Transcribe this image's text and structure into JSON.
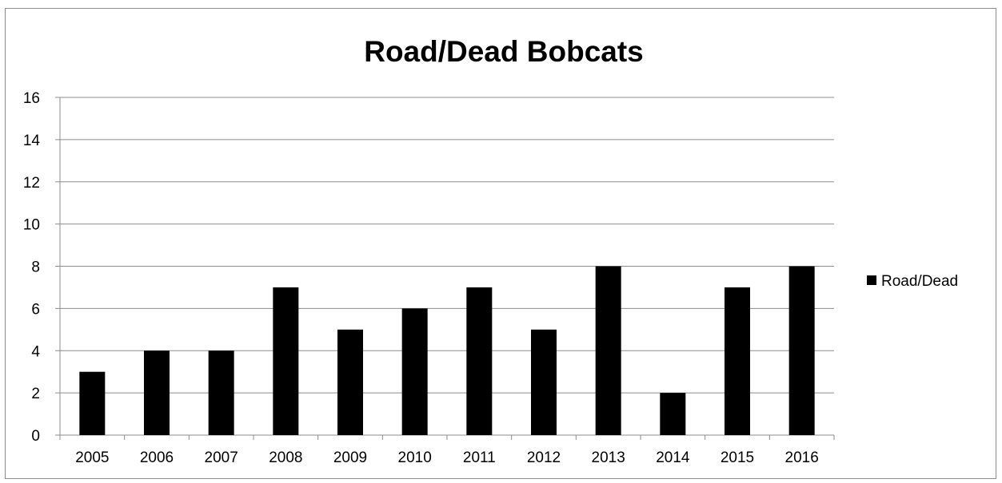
{
  "chart_data": {
    "type": "bar",
    "title": "Road/Dead Bobcats",
    "xlabel": "",
    "ylabel": "",
    "categories": [
      "2005",
      "2006",
      "2007",
      "2008",
      "2009",
      "2010",
      "2011",
      "2012",
      "2013",
      "2014",
      "2015",
      "2016"
    ],
    "series": [
      {
        "name": "Road/Dead",
        "values": [
          3,
          4,
          4,
          7,
          5,
          6,
          7,
          5,
          8,
          2,
          7,
          8
        ],
        "color": "#000000"
      }
    ],
    "ylim": [
      0,
      16
    ],
    "yticks": [
      0,
      2,
      4,
      6,
      8,
      10,
      12,
      14,
      16
    ],
    "grid": true,
    "legend_position": "right"
  }
}
